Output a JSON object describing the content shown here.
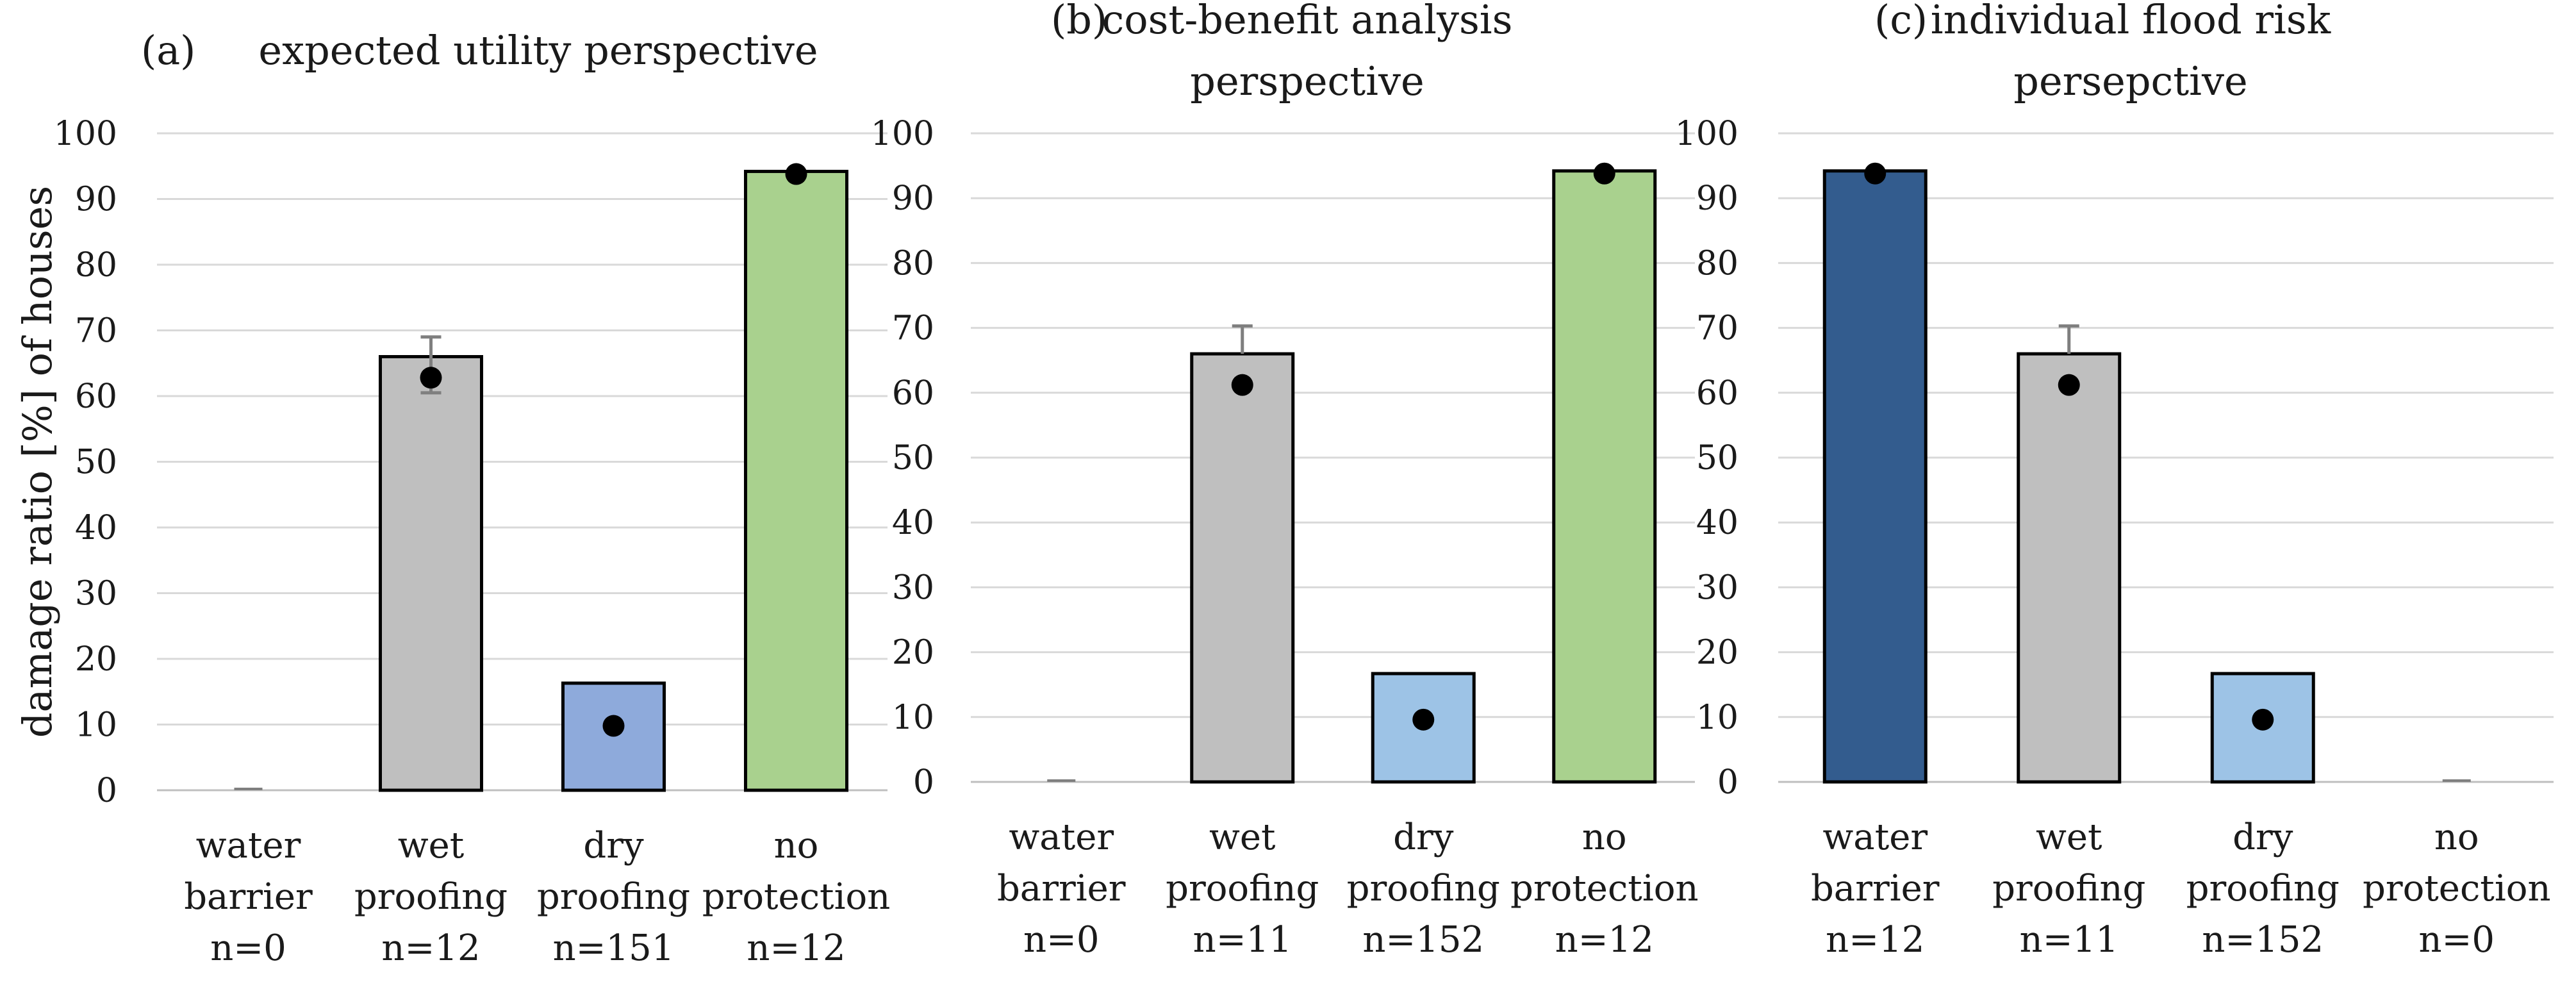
{
  "chart_data": [
    {
      "type": "bar",
      "title_prefix": "(a)",
      "title_lines": [
        "expected utility perspective"
      ],
      "ylabel": "damage ratio [%] of houses",
      "ylim": [
        0,
        100
      ],
      "yticks": [
        0,
        10,
        20,
        30,
        40,
        50,
        60,
        70,
        80,
        90,
        100
      ],
      "categories": [
        {
          "lines": [
            "water",
            "barrier"
          ],
          "n": "n=0"
        },
        {
          "lines": [
            "wet",
            "proofing"
          ],
          "n": "n=12"
        },
        {
          "lines": [
            "dry",
            "proofing"
          ],
          "n": "n=151"
        },
        {
          "lines": [
            "no",
            "protection"
          ],
          "n": "n=12"
        }
      ],
      "values": [
        0,
        66,
        16.3,
        94.2
      ],
      "points": [
        null,
        62.8,
        9.8,
        93.8
      ],
      "error_upper": [
        null,
        69,
        null,
        null
      ],
      "error_lower": [
        null,
        60.5,
        null,
        null
      ],
      "colors": [
        "#ffffff",
        "#bfbfbf",
        "#8eaadb",
        "#a9d18e"
      ]
    },
    {
      "type": "bar",
      "title_prefix": "(b)",
      "title_lines": [
        "cost-benefit analysis",
        "perspective"
      ],
      "ylabel": "",
      "ylim": [
        0,
        100
      ],
      "yticks": [
        0,
        10,
        20,
        30,
        40,
        50,
        60,
        70,
        80,
        90,
        100
      ],
      "categories": [
        {
          "lines": [
            "water",
            "barrier"
          ],
          "n": "n=0"
        },
        {
          "lines": [
            "wet",
            "proofing"
          ],
          "n": "n=11"
        },
        {
          "lines": [
            "dry",
            "proofing"
          ],
          "n": "n=152"
        },
        {
          "lines": [
            "no",
            "protection"
          ],
          "n": "n=12"
        }
      ],
      "values": [
        0,
        66,
        16.7,
        94.2
      ],
      "points": [
        null,
        61.2,
        9.6,
        93.8
      ],
      "error_upper": [
        null,
        70.3,
        null,
        null
      ],
      "error_lower": [
        null,
        null,
        null,
        null
      ],
      "colors": [
        "#ffffff",
        "#bfbfbf",
        "#9dc3e6",
        "#a9d18e"
      ]
    },
    {
      "type": "bar",
      "title_prefix": "(c)",
      "title_lines": [
        "individual flood risk",
        "persepctive"
      ],
      "ylabel": "",
      "ylim": [
        0,
        100
      ],
      "yticks": [
        0,
        10,
        20,
        30,
        40,
        50,
        60,
        70,
        80,
        90,
        100
      ],
      "categories": [
        {
          "lines": [
            "water",
            "barrier"
          ],
          "n": "n=12"
        },
        {
          "lines": [
            "wet",
            "proofing"
          ],
          "n": "n=11"
        },
        {
          "lines": [
            "dry",
            "proofing"
          ],
          "n": "n=152"
        },
        {
          "lines": [
            "no",
            "protection"
          ],
          "n": "n=0"
        }
      ],
      "values": [
        94.2,
        66,
        16.7,
        0
      ],
      "points": [
        93.8,
        61.2,
        9.6,
        null
      ],
      "error_upper": [
        null,
        70.3,
        null,
        null
      ],
      "error_lower": [
        null,
        null,
        null,
        null
      ],
      "colors": [
        "#335c8e",
        "#bfbfbf",
        "#9dc3e6",
        "#ffffff"
      ]
    }
  ]
}
